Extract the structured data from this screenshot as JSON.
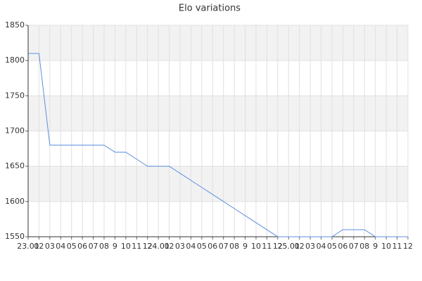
{
  "chart_data": {
    "type": "line",
    "title": "Elo variations",
    "categories": [
      "23.01",
      "02",
      "03",
      "04",
      "05",
      "06",
      "07",
      "08",
      "9",
      "10",
      "11",
      "12",
      "24.01",
      "02",
      "03",
      "04",
      "05",
      "06",
      "07",
      "08",
      "9",
      "10",
      "11",
      "12",
      "25.01",
      "02",
      "03",
      "04",
      "05",
      "06",
      "07",
      "08",
      "9",
      "10",
      "11",
      "12"
    ],
    "series": [
      {
        "color": "#5b8fe0",
        "values": [
          1810,
          1810,
          1680,
          1680,
          1680,
          1680,
          1680,
          1680,
          1670,
          1670,
          1660,
          1650,
          1650,
          1650,
          1640,
          1630,
          1620,
          1610,
          1600,
          1590,
          1580,
          1570,
          1560,
          1550,
          1550,
          1550,
          1550,
          1550,
          1550,
          1560,
          1560,
          1560,
          1550,
          1550,
          1550,
          1550
        ]
      }
    ],
    "ylim": [
      1550,
      1850
    ],
    "yticks": [
      1550,
      1600,
      1650,
      1700,
      1750,
      1800,
      1850
    ],
    "grid": true,
    "band_color": "#f2f2f2"
  }
}
